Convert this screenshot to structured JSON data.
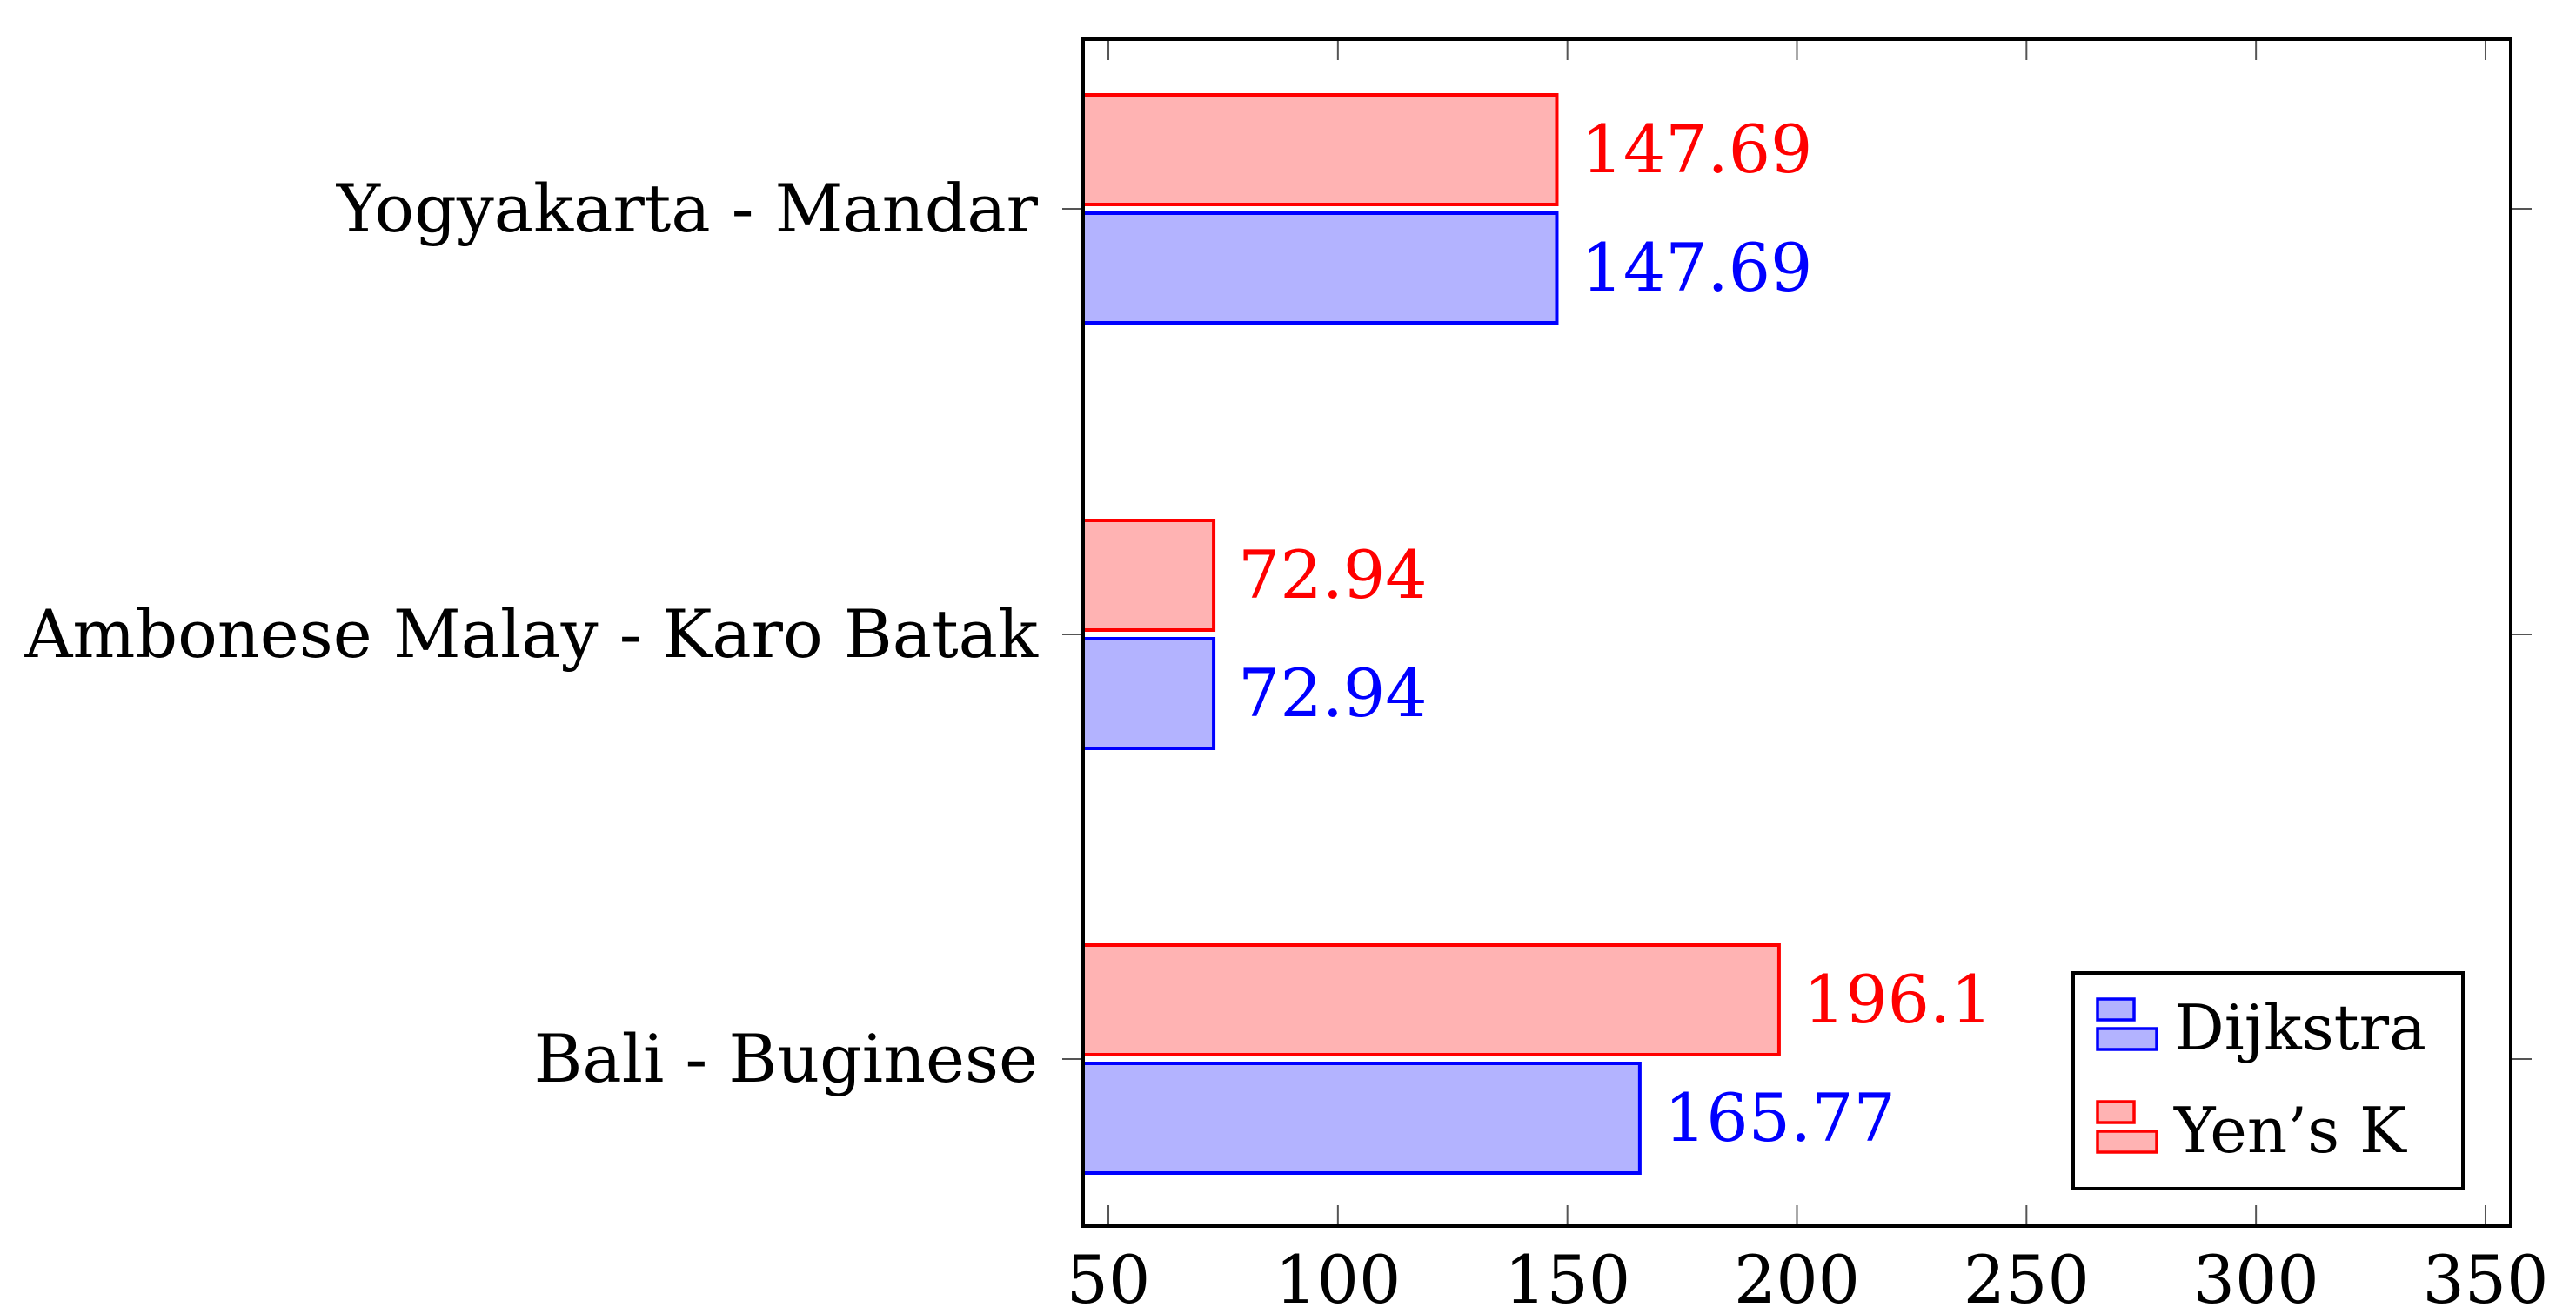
{
  "chart_data": {
    "type": "bar",
    "orientation": "horizontal",
    "categories": [
      "Bali - Buginese",
      "Ambonese Malay - Karo Batak",
      "Yogyakarta - Mandar"
    ],
    "series": [
      {
        "name": "Dijkstra",
        "values": [
          165.77,
          72.94,
          147.69
        ],
        "value_labels": [
          "165.77",
          "72.94",
          "147.69"
        ],
        "color": "#0000ff",
        "fill": "#b3b3ff"
      },
      {
        "name": "Yen’s K",
        "values": [
          196.1,
          72.94,
          147.69
        ],
        "value_labels": [
          "196.1",
          "72.94",
          "147.69"
        ],
        "color": "#ff0000",
        "fill": "#ffb3b3"
      }
    ],
    "xlim": [
      44.5,
      355.5
    ],
    "xticks": [
      50,
      100,
      150,
      200,
      250,
      300,
      350
    ],
    "xtick_labels": [
      "50",
      "100",
      "150",
      "200",
      "250",
      "300",
      "350"
    ],
    "title": "",
    "xlabel": "",
    "ylabel": "",
    "grid": false,
    "legend_position": "bottom-right"
  }
}
